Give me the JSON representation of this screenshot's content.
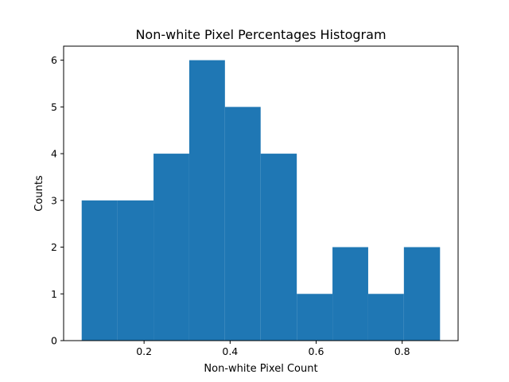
{
  "chart_data": {
    "type": "bar",
    "title": "Non-white Pixel Percentages Histogram",
    "xlabel": "Non-white Pixel Count",
    "ylabel": "Counts",
    "bins": [
      {
        "start": 0.055,
        "end": 0.138,
        "count": 3
      },
      {
        "start": 0.138,
        "end": 0.222,
        "count": 3
      },
      {
        "start": 0.222,
        "end": 0.305,
        "count": 4
      },
      {
        "start": 0.305,
        "end": 0.388,
        "count": 6
      },
      {
        "start": 0.388,
        "end": 0.471,
        "count": 5
      },
      {
        "start": 0.471,
        "end": 0.555,
        "count": 4
      },
      {
        "start": 0.555,
        "end": 0.638,
        "count": 1
      },
      {
        "start": 0.638,
        "end": 0.721,
        "count": 2
      },
      {
        "start": 0.721,
        "end": 0.804,
        "count": 1
      },
      {
        "start": 0.804,
        "end": 0.888,
        "count": 2
      }
    ],
    "xlim": [
      0.013,
      0.93
    ],
    "ylim": [
      0,
      6.3
    ],
    "xticks": [
      0.2,
      0.4,
      0.6,
      0.8
    ],
    "xtick_labels": [
      "0.2",
      "0.4",
      "0.6",
      "0.8"
    ],
    "yticks": [
      0,
      1,
      2,
      3,
      4,
      5,
      6
    ],
    "ytick_labels": [
      "0",
      "1",
      "2",
      "3",
      "4",
      "5",
      "6"
    ],
    "bar_color": "#1f77b4",
    "grid": false,
    "legend": "none"
  }
}
